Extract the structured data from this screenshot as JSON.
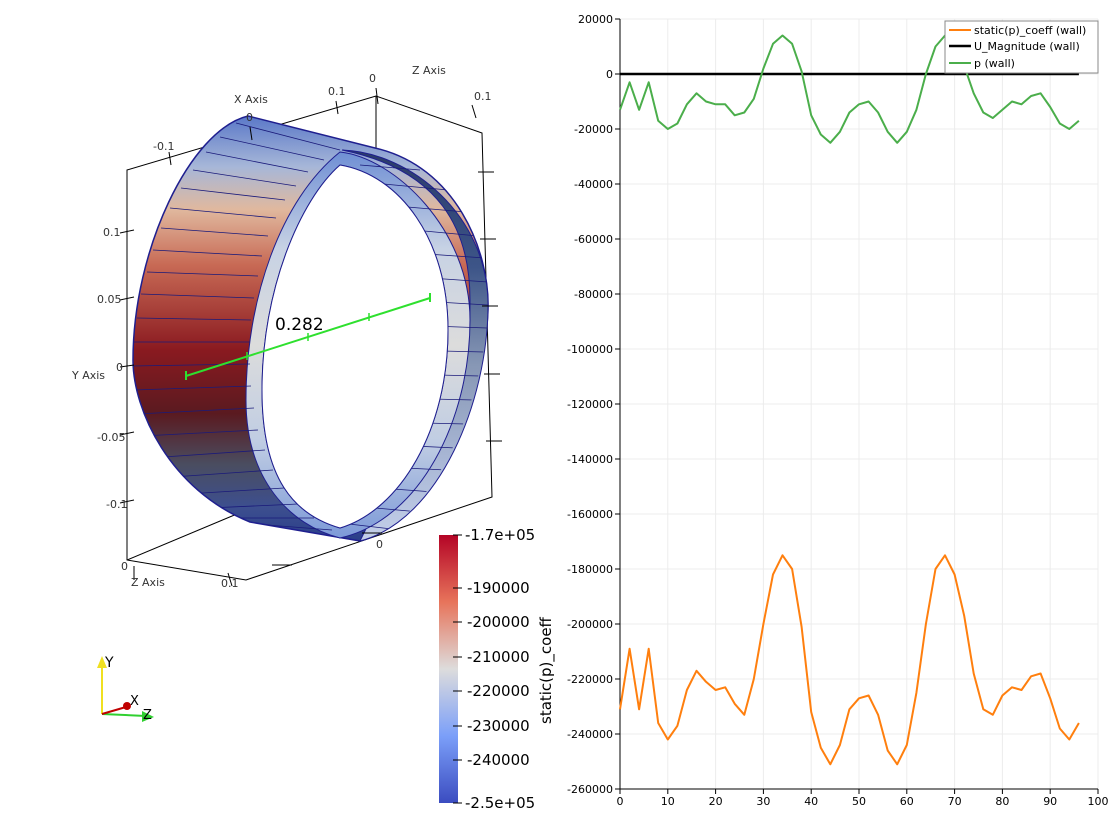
{
  "view3d": {
    "axes": {
      "x_title": "X Axis",
      "y_title": "Y Axis",
      "z_title_top": "Z Axis",
      "z_title_bottom": "Z Axis",
      "x_ticks": [
        "-0.1",
        "0",
        "0.1"
      ],
      "y_ticks": [
        "0.1",
        "0.05",
        "0",
        "-0.05",
        "-0.1"
      ],
      "z_ticks_top": [
        "0",
        "0.1"
      ],
      "z_ticks_bottom": [
        "0",
        "0.1"
      ],
      "front_tick": "0"
    },
    "ruler_label": "0.282",
    "orientation": {
      "x": "X",
      "y": "Y",
      "z": "Z"
    },
    "colorbar": {
      "title": "static(p)_coeff",
      "max_label": "-1.7e+05",
      "min_label": "-2.5e+05",
      "tick_labels": [
        "-190000",
        "-200000",
        "-210000",
        "-220000",
        "-230000",
        "-240000"
      ]
    },
    "colors": {
      "high": "#b40426",
      "mid": "#dddcdc",
      "low": "#3b4cc0",
      "ruler": "#2ee02e",
      "cylinder_edge": "#1f1f8f"
    }
  },
  "chart_data": {
    "type": "line",
    "x": [
      0,
      2,
      4,
      6,
      8,
      10,
      12,
      14,
      16,
      18,
      20,
      22,
      24,
      26,
      28,
      30,
      32,
      34,
      36,
      38,
      40,
      42,
      44,
      46,
      48,
      50,
      52,
      54,
      56,
      58,
      60,
      62,
      64,
      66,
      68,
      70,
      72,
      74,
      76,
      78,
      80,
      82,
      84,
      86,
      88,
      90,
      92,
      94,
      96
    ],
    "series": [
      {
        "name": "static(p)_coeff (wall)",
        "color": "#ff7f0e",
        "values": [
          -231000,
          -209000,
          -231000,
          -209000,
          -236000,
          -242000,
          -237000,
          -224000,
          -217000,
          -221000,
          -224000,
          -223000,
          -229000,
          -233000,
          -220000,
          -200000,
          -182000,
          -175000,
          -180000,
          -201000,
          -232000,
          -245000,
          -251000,
          -244000,
          -231000,
          -227000,
          -226000,
          -233000,
          -246000,
          -251000,
          -244000,
          -225000,
          -200000,
          -180000,
          -175000,
          -182000,
          -197000,
          -218000,
          -231000,
          -233000,
          -226000,
          -223000,
          -224000,
          -219000,
          -218000,
          -227000,
          -238000,
          -242000,
          -236000
        ]
      },
      {
        "name": "U_Magnitude (wall)",
        "color": "#000000",
        "values": [
          0,
          0,
          0,
          0,
          0,
          0,
          0,
          0,
          0,
          0,
          0,
          0,
          0,
          0,
          0,
          0,
          0,
          0,
          0,
          0,
          0,
          0,
          0,
          0,
          0,
          0,
          0,
          0,
          0,
          0,
          0,
          0,
          0,
          0,
          0,
          0,
          0,
          0,
          0,
          0,
          0,
          0,
          0,
          0,
          0,
          0,
          0,
          0,
          0
        ]
      },
      {
        "name": "p (wall)",
        "color": "#4bae4b",
        "values": [
          -13000,
          -3000,
          -13000,
          -3000,
          -17000,
          -20000,
          -18000,
          -11000,
          -7000,
          -10000,
          -11000,
          -11000,
          -15000,
          -14000,
          -9000,
          2000,
          11000,
          14000,
          11000,
          1000,
          -15000,
          -22000,
          -25000,
          -21000,
          -14000,
          -11000,
          -10000,
          -14000,
          -21000,
          -25000,
          -21000,
          -13000,
          0,
          10000,
          14000,
          11000,
          3000,
          -7000,
          -14000,
          -16000,
          -13000,
          -10000,
          -11000,
          -8000,
          -7000,
          -12000,
          -18000,
          -20000,
          -17000
        ]
      }
    ],
    "xlim": [
      0,
      100
    ],
    "ylim": [
      -260000,
      20000
    ],
    "x_ticks": [
      0,
      10,
      20,
      30,
      40,
      50,
      60,
      70,
      80,
      90,
      100
    ],
    "y_ticks": [
      20000,
      0,
      -20000,
      -40000,
      -60000,
      -80000,
      -100000,
      -120000,
      -140000,
      -160000,
      -180000,
      -200000,
      -220000,
      -240000,
      -260000
    ],
    "grid": true,
    "legend_position": "top-right"
  }
}
